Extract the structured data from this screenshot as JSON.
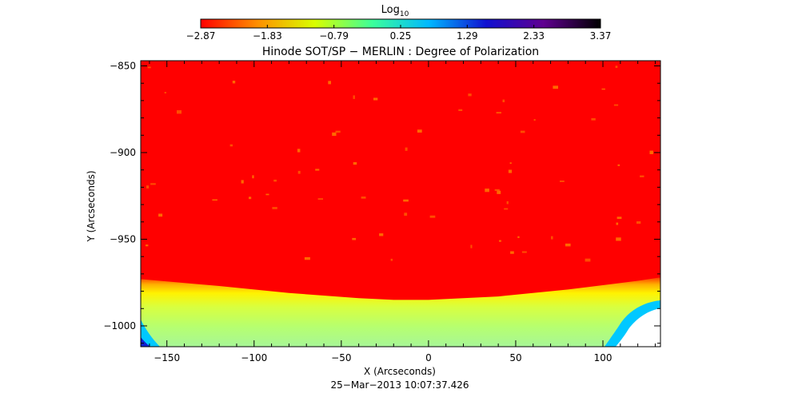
{
  "chart_data": {
    "type": "heatmap",
    "title": "Hinode SOT/SP − MERLIN : Degree of Polarization",
    "xlabel": "X (Arcseconds)",
    "ylabel": "Y (Arcseconds)",
    "xlim": [
      -165,
      133
    ],
    "ylim": [
      -1012,
      -847
    ],
    "x_ticks": [
      -150,
      -100,
      -50,
      0,
      50,
      100
    ],
    "x_tick_labels": [
      "−150",
      "−100",
      "−50",
      "0",
      "50",
      "100"
    ],
    "y_ticks": [
      -850,
      -900,
      -950,
      -1000
    ],
    "y_tick_labels": [
      "−850",
      "−900",
      "−950",
      "−1000"
    ],
    "timestamp": "25−Mar−2013 10:07:37.426",
    "colorbar": {
      "title": "Log",
      "title_subscript": "10",
      "range": [
        -2.87,
        3.37
      ],
      "ticks": [
        -2.87,
        -1.83,
        -0.79,
        0.25,
        1.29,
        2.33,
        3.37
      ],
      "tick_labels": [
        "−2.87",
        "−1.83",
        "−0.79",
        "0.25",
        "1.29",
        "2.33",
        "3.37"
      ],
      "colors": [
        "#ff0000",
        "#ff9000",
        "#d8ff00",
        "#3cff9a",
        "#00b8ff",
        "#1010d0",
        "#600090",
        "#000000"
      ]
    },
    "limb_boundary": {
      "x": [
        -165,
        -120,
        -80,
        -40,
        -20,
        0,
        40,
        80,
        120,
        133
      ],
      "y": [
        -973,
        -977,
        -981,
        -984,
        -985,
        -985,
        -983,
        -979,
        -974,
        -972
      ]
    },
    "colors": {
      "disk": "#ff0000",
      "limb_band": "#ffd000",
      "off_limb": "#b8ff60",
      "off_limb_far": "#9cf0c0",
      "corner_edge": "#00c8ff",
      "no_data": "#ffffff"
    }
  }
}
